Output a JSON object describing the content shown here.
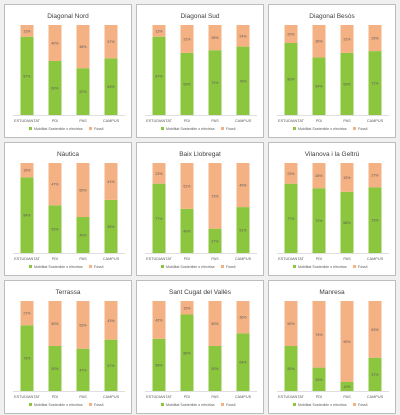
{
  "colors": {
    "sustainable": "#8cc63f",
    "fossil": "#f4b183",
    "axis": "#bfbfbf",
    "title": "#404040",
    "label": "#595959"
  },
  "legend": {
    "sustainable": "Mobilitat Sostenible o elèctrica",
    "fossil": "Fòssil"
  },
  "chart_data": [
    {
      "type": "bar",
      "stacked": true,
      "percent": true,
      "title": "Diagonal Nord",
      "categories": [
        "ESTUDIANTAT",
        "PDI",
        "PAS",
        "CAMPUS"
      ],
      "series": [
        {
          "name": "Mobilitat Sostenible o elèctrica",
          "values": [
            87,
            60,
            52,
            63
          ]
        },
        {
          "name": "Fòssil",
          "values": [
            13,
            40,
            48,
            37
          ]
        }
      ]
    },
    {
      "type": "bar",
      "stacked": true,
      "percent": true,
      "title": "Diagonal Sud",
      "categories": [
        "ESTUDIANTAT",
        "PDI",
        "PAS",
        "CAMPUS"
      ],
      "series": [
        {
          "name": "Mobilitat Sostenible o elèctrica",
          "values": [
            87,
            69,
            72,
            76
          ]
        },
        {
          "name": "Fòssil",
          "values": [
            13,
            31,
            28,
            24
          ]
        }
      ]
    },
    {
      "type": "bar",
      "stacked": true,
      "percent": true,
      "title": "Diagonal Besòs",
      "categories": [
        "ESTUDIANTAT",
        "PDI",
        "PAS",
        "CAMPUS"
      ],
      "series": [
        {
          "name": "Mobilitat Sostenible o elèctrica",
          "values": [
            80,
            64,
            69,
            71
          ]
        },
        {
          "name": "Fòssil",
          "values": [
            20,
            36,
            31,
            29
          ]
        }
      ]
    },
    {
      "type": "bar",
      "stacked": true,
      "percent": true,
      "title": "Nàutica",
      "categories": [
        "ESTUDIANTAT",
        "PDI",
        "PAS",
        "CAMPUS"
      ],
      "series": [
        {
          "name": "Mobilitat Sostenible o elèctrica",
          "values": [
            84,
            53,
            40,
            59
          ]
        },
        {
          "name": "Fòssil",
          "values": [
            16,
            47,
            60,
            41
          ]
        }
      ]
    },
    {
      "type": "bar",
      "stacked": true,
      "percent": true,
      "title": "Baix Llobregat",
      "categories": [
        "ESTUDIANTAT",
        "PDI",
        "PAS",
        "CAMPUS"
      ],
      "series": [
        {
          "name": "Mobilitat Sostenible o elèctrica",
          "values": [
            77,
            49,
            27,
            51
          ]
        },
        {
          "name": "Fòssil",
          "values": [
            23,
            51,
            73,
            49
          ]
        }
      ]
    },
    {
      "type": "bar",
      "stacked": true,
      "percent": true,
      "title": "Vilanova i la Geltrú",
      "categories": [
        "ESTUDIANTAT",
        "PDI",
        "PAS",
        "CAMPUS"
      ],
      "series": [
        {
          "name": "Mobilitat Sostenible o elèctrica",
          "values": [
            77,
            72,
            68,
            73
          ]
        },
        {
          "name": "Fòssil",
          "values": [
            23,
            28,
            32,
            27
          ]
        }
      ]
    },
    {
      "type": "bar",
      "stacked": true,
      "percent": true,
      "title": "Terrassa",
      "categories": [
        "ESTUDIANTAT",
        "PDI",
        "PAS",
        "CAMPUS"
      ],
      "series": [
        {
          "name": "Mobilitat Sostenible o elèctrica",
          "values": [
            73,
            50,
            47,
            57
          ]
        },
        {
          "name": "Fòssil",
          "values": [
            27,
            50,
            53,
            43
          ]
        }
      ]
    },
    {
      "type": "bar",
      "stacked": true,
      "percent": true,
      "title": "Sant Cugat del Vallès",
      "categories": [
        "ESTUDIANTAT",
        "PDI",
        "PAS",
        "CAMPUS"
      ],
      "series": [
        {
          "name": "Mobilitat Sostenible o elèctrica",
          "values": [
            58,
            85,
            50,
            64
          ]
        },
        {
          "name": "Fòssil",
          "values": [
            42,
            15,
            50,
            36
          ]
        }
      ]
    },
    {
      "type": "bar",
      "stacked": true,
      "percent": true,
      "title": "Manresa",
      "categories": [
        "ESTUDIANTAT",
        "PDI",
        "PAS",
        "CAMPUS"
      ],
      "series": [
        {
          "name": "Mobilitat Sostenible o elèctrica",
          "values": [
            50,
            26,
            10,
            37
          ]
        },
        {
          "name": "Fòssil",
          "values": [
            50,
            74,
            90,
            63
          ]
        }
      ]
    }
  ]
}
